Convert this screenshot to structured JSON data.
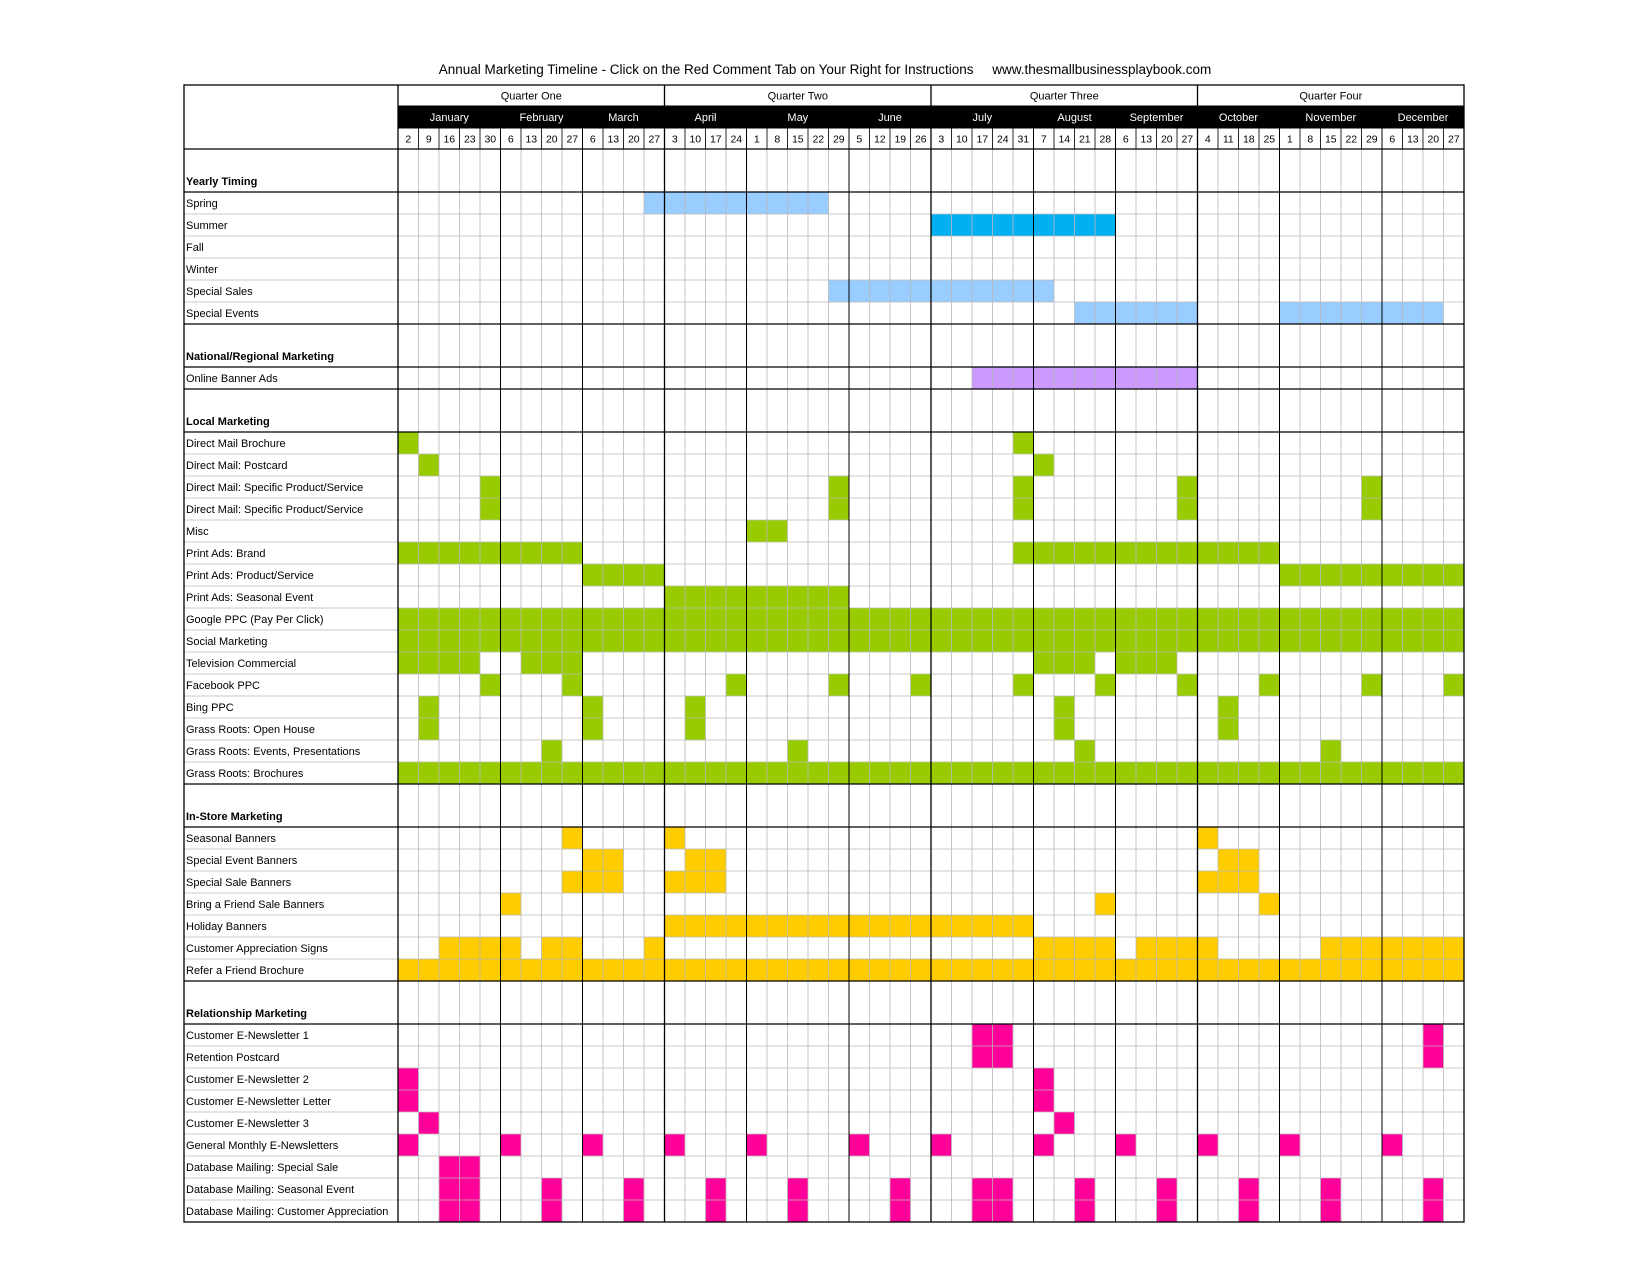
{
  "title": "Annual Marketing Timeline - Click on the Red Comment Tab on Your Right for Instructions     www.thesmallbusinessplaybook.com",
  "colors": {
    "season_light": "#99ccff",
    "summer": "#00b0f0",
    "online": "#cc99ff",
    "local": "#99cc00",
    "instore": "#ffcc00",
    "relationship": "#ff0099"
  },
  "quarters": [
    "Quarter One",
    "Quarter Two",
    "Quarter Three",
    "Quarter Four"
  ],
  "months": [
    {
      "name": "January",
      "weeks": [
        2,
        9,
        16,
        23,
        30
      ]
    },
    {
      "name": "February",
      "weeks": [
        6,
        13,
        20,
        27
      ]
    },
    {
      "name": "March",
      "weeks": [
        6,
        13,
        20,
        27
      ]
    },
    {
      "name": "April",
      "weeks": [
        3,
        10,
        17,
        24
      ]
    },
    {
      "name": "May",
      "weeks": [
        1,
        8,
        15,
        22,
        29
      ]
    },
    {
      "name": "June",
      "weeks": [
        5,
        12,
        19,
        26
      ]
    },
    {
      "name": "July",
      "weeks": [
        3,
        10,
        17,
        24,
        31
      ]
    },
    {
      "name": "August",
      "weeks": [
        7,
        14,
        21,
        28
      ]
    },
    {
      "name": "September",
      "weeks": [
        6,
        13,
        20,
        27
      ]
    },
    {
      "name": "October",
      "weeks": [
        4,
        11,
        18,
        25
      ]
    },
    {
      "name": "November",
      "weeks": [
        1,
        8,
        15,
        22,
        29
      ]
    },
    {
      "name": "December",
      "weeks": [
        6,
        13,
        20,
        27
      ]
    }
  ],
  "sections": [
    {
      "name": "Yearly Timing",
      "rows": [
        {
          "label": "Spring",
          "color": "season_light",
          "weeks": [
            12,
            13,
            14,
            15,
            16,
            17,
            18,
            19,
            20
          ]
        },
        {
          "label": "Summer",
          "color": "summer",
          "weeks": [
            26,
            27,
            28,
            29,
            30,
            31,
            32,
            33,
            34
          ]
        },
        {
          "label": "Fall",
          "color": "season_light",
          "weeks": []
        },
        {
          "label": "Winter",
          "color": "season_light",
          "weeks": []
        },
        {
          "label": "Special Sales",
          "color": "season_light",
          "weeks": [
            21,
            22,
            23,
            24,
            25,
            26,
            27,
            28,
            29,
            30,
            31
          ]
        },
        {
          "label": "Special Events",
          "color": "season_light",
          "weeks": [
            33,
            34,
            35,
            36,
            37,
            38,
            43,
            44,
            45,
            46,
            47,
            48,
            49,
            50
          ]
        }
      ]
    },
    {
      "name": "National/Regional Marketing",
      "rows": [
        {
          "label": "Online Banner Ads",
          "color": "online",
          "weeks": [
            28,
            29,
            30,
            31,
            32,
            33,
            34,
            35,
            36,
            37,
            38
          ]
        }
      ]
    },
    {
      "name": "Local Marketing",
      "rows": [
        {
          "label": "Direct Mail Brochure",
          "color": "local",
          "weeks": [
            0,
            30
          ]
        },
        {
          "label": "Direct Mail: Postcard",
          "color": "local",
          "weeks": [
            1,
            31
          ]
        },
        {
          "label": "Direct Mail: Specific Product/Service",
          "color": "local",
          "weeks": [
            4,
            21,
            30,
            38,
            47
          ]
        },
        {
          "label": "Direct Mail: Specific Product/Service",
          "color": "local",
          "weeks": [
            4,
            21,
            30,
            38,
            47
          ]
        },
        {
          "label": "Misc",
          "color": "local",
          "weeks": [
            17,
            18
          ]
        },
        {
          "label": "Print Ads: Brand",
          "color": "local",
          "weeks": [
            0,
            1,
            2,
            3,
            4,
            5,
            6,
            7,
            8,
            30,
            31,
            32,
            33,
            34,
            35,
            36,
            37,
            38,
            39,
            40,
            41,
            42
          ]
        },
        {
          "label": "Print Ads: Product/Service",
          "color": "local",
          "weeks": [
            9,
            10,
            11,
            12,
            43,
            44,
            45,
            46,
            47,
            48,
            49,
            50,
            51
          ]
        },
        {
          "label": "Print Ads: Seasonal Event",
          "color": "local",
          "weeks": [
            13,
            14,
            15,
            16,
            17,
            18,
            19,
            20,
            21
          ]
        },
        {
          "label": "Google PPC (Pay Per Click)",
          "color": "local",
          "weeks": [
            0,
            1,
            2,
            3,
            4,
            5,
            6,
            7,
            8,
            9,
            10,
            11,
            12,
            13,
            14,
            15,
            16,
            17,
            18,
            19,
            20,
            21,
            22,
            23,
            24,
            25,
            26,
            27,
            28,
            29,
            30,
            31,
            32,
            33,
            34,
            35,
            36,
            37,
            38,
            39,
            40,
            41,
            42,
            43,
            44,
            45,
            46,
            47,
            48,
            49,
            50,
            51
          ]
        },
        {
          "label": "Social Marketing",
          "color": "local",
          "weeks": [
            0,
            1,
            2,
            3,
            4,
            5,
            6,
            7,
            8,
            9,
            10,
            11,
            12,
            13,
            14,
            15,
            16,
            17,
            18,
            19,
            20,
            21,
            22,
            23,
            24,
            25,
            26,
            27,
            28,
            29,
            30,
            31,
            32,
            33,
            34,
            35,
            36,
            37,
            38,
            39,
            40,
            41,
            42,
            43,
            44,
            45,
            46,
            47,
            48,
            49,
            50,
            51
          ]
        },
        {
          "label": "Television Commercial",
          "color": "local",
          "weeks": [
            0,
            1,
            2,
            3,
            6,
            7,
            8,
            31,
            32,
            33,
            35,
            36,
            37
          ]
        },
        {
          "label": "Facebook PPC",
          "color": "local",
          "weeks": [
            4,
            8,
            16,
            21,
            25,
            30,
            34,
            38,
            42,
            47,
            51
          ]
        },
        {
          "label": "Bing PPC",
          "color": "local",
          "weeks": [
            1,
            9,
            14,
            32,
            40
          ]
        },
        {
          "label": "Grass Roots: Open House",
          "color": "local",
          "weeks": [
            1,
            9,
            14,
            32,
            40
          ]
        },
        {
          "label": "Grass Roots: Events, Presentations",
          "color": "local",
          "weeks": [
            7,
            19,
            33,
            45
          ]
        },
        {
          "label": "Grass Roots: Brochures",
          "color": "local",
          "weeks": [
            0,
            1,
            2,
            3,
            4,
            5,
            6,
            7,
            8,
            9,
            10,
            11,
            12,
            13,
            14,
            15,
            16,
            17,
            18,
            19,
            20,
            21,
            22,
            23,
            24,
            25,
            26,
            27,
            28,
            29,
            30,
            31,
            32,
            33,
            34,
            35,
            36,
            37,
            38,
            39,
            40,
            41,
            42,
            43,
            44,
            45,
            46,
            47,
            48,
            49,
            50,
            51
          ]
        }
      ]
    },
    {
      "name": "In-Store Marketing",
      "rows": [
        {
          "label": "Seasonal Banners",
          "color": "instore",
          "weeks": [
            8,
            13,
            39
          ]
        },
        {
          "label": "Special Event Banners",
          "color": "instore",
          "weeks": [
            9,
            10,
            14,
            15,
            40,
            41
          ]
        },
        {
          "label": "Special Sale Banners",
          "color": "instore",
          "weeks": [
            8,
            9,
            10,
            13,
            14,
            15,
            39,
            40,
            41
          ]
        },
        {
          "label": "Bring a Friend Sale Banners",
          "color": "instore",
          "weeks": [
            5,
            34,
            42
          ]
        },
        {
          "label": "Holiday Banners",
          "color": "instore",
          "weeks": [
            13,
            14,
            15,
            16,
            17,
            18,
            19,
            20,
            21,
            22,
            23,
            24,
            25,
            26,
            27,
            28,
            29,
            30
          ]
        },
        {
          "label": "Customer Appreciation Signs",
          "color": "instore",
          "weeks": [
            2,
            3,
            4,
            5,
            7,
            8,
            12,
            31,
            32,
            33,
            34,
            36,
            37,
            38,
            39,
            45,
            46,
            47,
            48,
            49,
            50,
            51
          ]
        },
        {
          "label": "Refer a Friend Brochure",
          "color": "instore",
          "weeks": [
            0,
            1,
            2,
            3,
            4,
            5,
            6,
            7,
            8,
            9,
            10,
            11,
            12,
            13,
            14,
            15,
            16,
            17,
            18,
            19,
            20,
            21,
            22,
            23,
            24,
            25,
            26,
            27,
            28,
            29,
            30,
            31,
            32,
            33,
            34,
            35,
            36,
            37,
            38,
            39,
            40,
            41,
            42,
            43,
            44,
            45,
            46,
            47,
            48,
            49,
            50,
            51
          ]
        }
      ]
    },
    {
      "name": "Relationship Marketing",
      "rows": [
        {
          "label": "Customer E-Newsletter 1",
          "color": "relationship",
          "weeks": [
            28,
            29,
            50
          ]
        },
        {
          "label": "Retention Postcard",
          "color": "relationship",
          "weeks": [
            28,
            29,
            50
          ]
        },
        {
          "label": "Customer E-Newsletter 2",
          "color": "relationship",
          "weeks": [
            0,
            31
          ]
        },
        {
          "label": "Customer E-Newsletter Letter",
          "color": "relationship",
          "weeks": [
            0,
            31
          ]
        },
        {
          "label": "Customer E-Newsletter 3",
          "color": "relationship",
          "weeks": [
            1,
            32
          ]
        },
        {
          "label": "General  Monthly E-Newsletters",
          "color": "relationship",
          "weeks": [
            0,
            5,
            9,
            13,
            17,
            22,
            26,
            31,
            35,
            39,
            43,
            48
          ]
        },
        {
          "label": "Database Mailing: Special Sale",
          "color": "relationship",
          "weeks": [
            2,
            3
          ]
        },
        {
          "label": "Database Mailing: Seasonal Event",
          "color": "relationship",
          "weeks": [
            2,
            3,
            7,
            11,
            15,
            19,
            24,
            28,
            29,
            33,
            37,
            41,
            45,
            50
          ]
        },
        {
          "label": "Database Mailing: Customer Appreciation",
          "color": "relationship",
          "weeks": [
            2,
            3,
            7,
            11,
            15,
            19,
            24,
            28,
            29,
            33,
            37,
            41,
            45,
            50
          ]
        }
      ]
    }
  ]
}
